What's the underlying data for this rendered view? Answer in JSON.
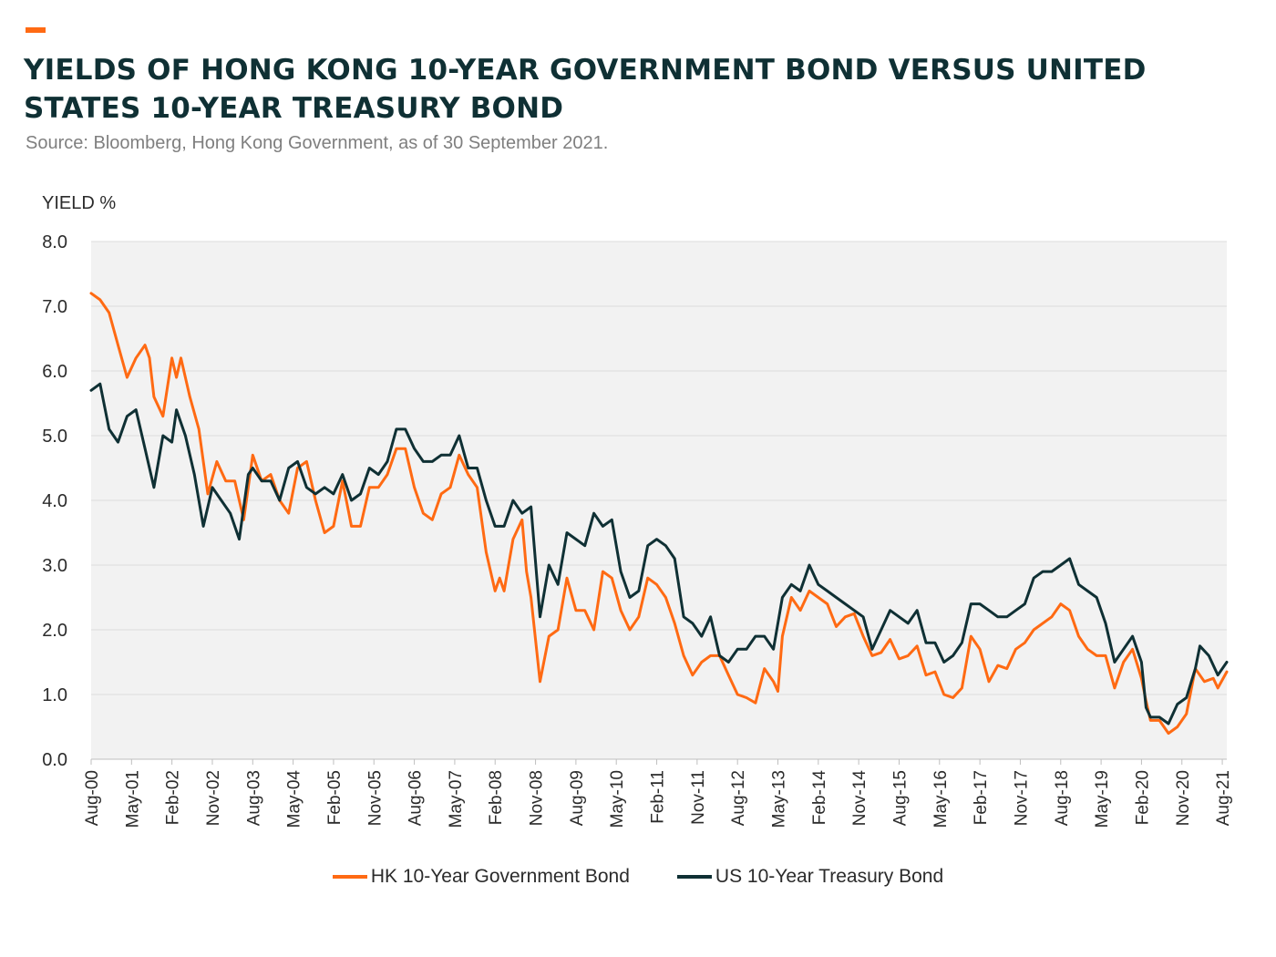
{
  "title": "YIELDS OF HONG KONG 10-YEAR GOVERNMENT BOND VERSUS UNITED STATES 10-YEAR TREASURY BOND",
  "subtitle": "Source: Bloomberg, Hong Kong Government, as of 30 September 2021.",
  "colors": {
    "accent": "#ff6a13",
    "hk": "#ff6a13",
    "us": "#0f3034",
    "title": "#0f3034",
    "plot_bg": "#f2f2f2"
  },
  "chart_data": {
    "type": "line",
    "title": "YIELDS OF HONG KONG 10-YEAR GOVERNMENT BOND VERSUS UNITED STATES 10-YEAR TREASURY BOND",
    "ylabel": "YIELD %",
    "xlabel": "",
    "ylim": [
      0,
      8
    ],
    "yticks": [
      "0.0",
      "1.0",
      "2.0",
      "3.0",
      "4.0",
      "5.0",
      "6.0",
      "7.0",
      "8.0"
    ],
    "xticks": [
      "Aug-00",
      "May-01",
      "Feb-02",
      "Nov-02",
      "Aug-03",
      "May-04",
      "Feb-05",
      "Nov-05",
      "Aug-06",
      "May-07",
      "Feb-08",
      "Nov-08",
      "Aug-09",
      "May-10",
      "Feb-11",
      "Nov-11",
      "Aug-12",
      "May-13",
      "Feb-14",
      "Nov-14",
      "Aug-15",
      "May-16",
      "Feb-17",
      "Nov-17",
      "Aug-18",
      "May-19",
      "Feb-20",
      "Nov-20",
      "Aug-21"
    ],
    "x_range": [
      "Aug-00",
      "Sep-21"
    ],
    "grid": "horizontal",
    "legend_position": "bottom",
    "series": [
      {
        "name": "HK 10-Year Government Bond",
        "color": "#ff6a13",
        "points": [
          [
            "2000-08",
            7.2
          ],
          [
            "2000-10",
            7.1
          ],
          [
            "2000-12",
            6.9
          ],
          [
            "2001-02",
            6.4
          ],
          [
            "2001-04",
            5.9
          ],
          [
            "2001-06",
            6.2
          ],
          [
            "2001-08",
            6.4
          ],
          [
            "2001-09",
            6.2
          ],
          [
            "2001-10",
            5.6
          ],
          [
            "2001-12",
            5.3
          ],
          [
            "2002-02",
            6.2
          ],
          [
            "2002-03",
            5.9
          ],
          [
            "2002-04",
            6.2
          ],
          [
            "2002-06",
            5.6
          ],
          [
            "2002-08",
            5.1
          ],
          [
            "2002-10",
            4.1
          ],
          [
            "2002-12",
            4.6
          ],
          [
            "2003-02",
            4.3
          ],
          [
            "2003-04",
            4.3
          ],
          [
            "2003-06",
            3.7
          ],
          [
            "2003-08",
            4.7
          ],
          [
            "2003-10",
            4.3
          ],
          [
            "2003-12",
            4.4
          ],
          [
            "2004-02",
            4.0
          ],
          [
            "2004-04",
            3.8
          ],
          [
            "2004-06",
            4.5
          ],
          [
            "2004-08",
            4.6
          ],
          [
            "2004-10",
            4.0
          ],
          [
            "2004-12",
            3.5
          ],
          [
            "2005-02",
            3.6
          ],
          [
            "2005-04",
            4.3
          ],
          [
            "2005-06",
            3.6
          ],
          [
            "2005-08",
            3.6
          ],
          [
            "2005-10",
            4.2
          ],
          [
            "2005-12",
            4.2
          ],
          [
            "2006-02",
            4.4
          ],
          [
            "2006-04",
            4.8
          ],
          [
            "2006-06",
            4.8
          ],
          [
            "2006-08",
            4.2
          ],
          [
            "2006-10",
            3.8
          ],
          [
            "2006-12",
            3.7
          ],
          [
            "2007-02",
            4.1
          ],
          [
            "2007-04",
            4.2
          ],
          [
            "2007-06",
            4.7
          ],
          [
            "2007-08",
            4.4
          ],
          [
            "2007-10",
            4.2
          ],
          [
            "2007-12",
            3.2
          ],
          [
            "2008-02",
            2.6
          ],
          [
            "2008-03",
            2.8
          ],
          [
            "2008-04",
            2.6
          ],
          [
            "2008-06",
            3.4
          ],
          [
            "2008-08",
            3.7
          ],
          [
            "2008-09",
            2.9
          ],
          [
            "2008-10",
            2.5
          ],
          [
            "2008-12",
            1.2
          ],
          [
            "2009-02",
            1.9
          ],
          [
            "2009-04",
            2.0
          ],
          [
            "2009-06",
            2.8
          ],
          [
            "2009-08",
            2.3
          ],
          [
            "2009-10",
            2.3
          ],
          [
            "2009-12",
            2.0
          ],
          [
            "2010-02",
            2.9
          ],
          [
            "2010-04",
            2.8
          ],
          [
            "2010-06",
            2.3
          ],
          [
            "2010-08",
            2.0
          ],
          [
            "2010-10",
            2.2
          ],
          [
            "2010-12",
            2.8
          ],
          [
            "2011-02",
            2.7
          ],
          [
            "2011-04",
            2.5
          ],
          [
            "2011-06",
            2.1
          ],
          [
            "2011-08",
            1.6
          ],
          [
            "2011-10",
            1.3
          ],
          [
            "2011-12",
            1.5
          ],
          [
            "2012-02",
            1.6
          ],
          [
            "2012-04",
            1.6
          ],
          [
            "2012-06",
            1.3
          ],
          [
            "2012-08",
            1.0
          ],
          [
            "2012-10",
            0.95
          ],
          [
            "2012-12",
            0.87
          ],
          [
            "2013-02",
            1.4
          ],
          [
            "2013-04",
            1.2
          ],
          [
            "2013-05",
            1.05
          ],
          [
            "2013-06",
            1.9
          ],
          [
            "2013-08",
            2.5
          ],
          [
            "2013-10",
            2.3
          ],
          [
            "2013-12",
            2.6
          ],
          [
            "2014-02",
            2.5
          ],
          [
            "2014-04",
            2.4
          ],
          [
            "2014-06",
            2.05
          ],
          [
            "2014-08",
            2.2
          ],
          [
            "2014-10",
            2.25
          ],
          [
            "2014-12",
            1.9
          ],
          [
            "2015-02",
            1.6
          ],
          [
            "2015-04",
            1.65
          ],
          [
            "2015-06",
            1.85
          ],
          [
            "2015-08",
            1.55
          ],
          [
            "2015-10",
            1.6
          ],
          [
            "2015-12",
            1.75
          ],
          [
            "2016-02",
            1.3
          ],
          [
            "2016-04",
            1.35
          ],
          [
            "2016-06",
            1.0
          ],
          [
            "2016-08",
            0.95
          ],
          [
            "2016-10",
            1.1
          ],
          [
            "2016-12",
            1.9
          ],
          [
            "2017-02",
            1.7
          ],
          [
            "2017-04",
            1.2
          ],
          [
            "2017-06",
            1.45
          ],
          [
            "2017-08",
            1.4
          ],
          [
            "2017-10",
            1.7
          ],
          [
            "2017-12",
            1.8
          ],
          [
            "2018-02",
            2.0
          ],
          [
            "2018-04",
            2.1
          ],
          [
            "2018-06",
            2.2
          ],
          [
            "2018-08",
            2.4
          ],
          [
            "2018-10",
            2.3
          ],
          [
            "2018-12",
            1.9
          ],
          [
            "2019-02",
            1.7
          ],
          [
            "2019-04",
            1.6
          ],
          [
            "2019-06",
            1.6
          ],
          [
            "2019-08",
            1.1
          ],
          [
            "2019-10",
            1.5
          ],
          [
            "2019-12",
            1.7
          ],
          [
            "2020-02",
            1.25
          ],
          [
            "2020-03",
            0.9
          ],
          [
            "2020-04",
            0.6
          ],
          [
            "2020-06",
            0.6
          ],
          [
            "2020-08",
            0.4
          ],
          [
            "2020-10",
            0.5
          ],
          [
            "2020-12",
            0.7
          ],
          [
            "2021-02",
            1.4
          ],
          [
            "2021-04",
            1.2
          ],
          [
            "2021-06",
            1.25
          ],
          [
            "2021-07",
            1.1
          ],
          [
            "2021-09",
            1.35
          ]
        ]
      },
      {
        "name": "US 10-Year Treasury Bond",
        "color": "#0f3034",
        "points": [
          [
            "2000-08",
            5.7
          ],
          [
            "2000-10",
            5.8
          ],
          [
            "2000-12",
            5.1
          ],
          [
            "2001-02",
            4.9
          ],
          [
            "2001-04",
            5.3
          ],
          [
            "2001-06",
            5.4
          ],
          [
            "2001-08",
            4.8
          ],
          [
            "2001-10",
            4.2
          ],
          [
            "2001-12",
            5.0
          ],
          [
            "2002-02",
            4.9
          ],
          [
            "2002-03",
            5.4
          ],
          [
            "2002-05",
            5.0
          ],
          [
            "2002-07",
            4.4
          ],
          [
            "2002-09",
            3.6
          ],
          [
            "2002-11",
            4.2
          ],
          [
            "2003-01",
            4.0
          ],
          [
            "2003-03",
            3.8
          ],
          [
            "2003-05",
            3.4
          ],
          [
            "2003-07",
            4.4
          ],
          [
            "2003-08",
            4.5
          ],
          [
            "2003-10",
            4.3
          ],
          [
            "2003-12",
            4.3
          ],
          [
            "2004-02",
            4.0
          ],
          [
            "2004-04",
            4.5
          ],
          [
            "2004-06",
            4.6
          ],
          [
            "2004-08",
            4.2
          ],
          [
            "2004-10",
            4.1
          ],
          [
            "2004-12",
            4.2
          ],
          [
            "2005-02",
            4.1
          ],
          [
            "2005-04",
            4.4
          ],
          [
            "2005-06",
            4.0
          ],
          [
            "2005-08",
            4.1
          ],
          [
            "2005-10",
            4.5
          ],
          [
            "2005-12",
            4.4
          ],
          [
            "2006-02",
            4.6
          ],
          [
            "2006-04",
            5.1
          ],
          [
            "2006-06",
            5.1
          ],
          [
            "2006-08",
            4.8
          ],
          [
            "2006-10",
            4.6
          ],
          [
            "2006-12",
            4.6
          ],
          [
            "2007-02",
            4.7
          ],
          [
            "2007-04",
            4.7
          ],
          [
            "2007-06",
            5.0
          ],
          [
            "2007-08",
            4.5
          ],
          [
            "2007-10",
            4.5
          ],
          [
            "2007-12",
            4.0
          ],
          [
            "2008-02",
            3.6
          ],
          [
            "2008-04",
            3.6
          ],
          [
            "2008-06",
            4.0
          ],
          [
            "2008-08",
            3.8
          ],
          [
            "2008-10",
            3.9
          ],
          [
            "2008-12",
            2.2
          ],
          [
            "2009-02",
            3.0
          ],
          [
            "2009-04",
            2.7
          ],
          [
            "2009-06",
            3.5
          ],
          [
            "2009-08",
            3.4
          ],
          [
            "2009-10",
            3.3
          ],
          [
            "2009-12",
            3.8
          ],
          [
            "2010-02",
            3.6
          ],
          [
            "2010-04",
            3.7
          ],
          [
            "2010-06",
            2.9
          ],
          [
            "2010-08",
            2.5
          ],
          [
            "2010-10",
            2.6
          ],
          [
            "2010-12",
            3.3
          ],
          [
            "2011-02",
            3.4
          ],
          [
            "2011-04",
            3.3
          ],
          [
            "2011-06",
            3.1
          ],
          [
            "2011-08",
            2.2
          ],
          [
            "2011-10",
            2.1
          ],
          [
            "2011-12",
            1.9
          ],
          [
            "2012-02",
            2.2
          ],
          [
            "2012-04",
            1.6
          ],
          [
            "2012-06",
            1.5
          ],
          [
            "2012-08",
            1.7
          ],
          [
            "2012-10",
            1.7
          ],
          [
            "2012-12",
            1.9
          ],
          [
            "2013-02",
            1.9
          ],
          [
            "2013-04",
            1.7
          ],
          [
            "2013-06",
            2.5
          ],
          [
            "2013-08",
            2.7
          ],
          [
            "2013-10",
            2.6
          ],
          [
            "2013-12",
            3.0
          ],
          [
            "2014-02",
            2.7
          ],
          [
            "2014-04",
            2.6
          ],
          [
            "2014-06",
            2.5
          ],
          [
            "2014-08",
            2.4
          ],
          [
            "2014-10",
            2.3
          ],
          [
            "2014-12",
            2.2
          ],
          [
            "2015-02",
            1.7
          ],
          [
            "2015-04",
            2.0
          ],
          [
            "2015-06",
            2.3
          ],
          [
            "2015-08",
            2.2
          ],
          [
            "2015-10",
            2.1
          ],
          [
            "2015-12",
            2.3
          ],
          [
            "2016-02",
            1.8
          ],
          [
            "2016-04",
            1.8
          ],
          [
            "2016-06",
            1.5
          ],
          [
            "2016-08",
            1.6
          ],
          [
            "2016-10",
            1.8
          ],
          [
            "2016-12",
            2.4
          ],
          [
            "2017-02",
            2.4
          ],
          [
            "2017-04",
            2.3
          ],
          [
            "2017-06",
            2.2
          ],
          [
            "2017-08",
            2.2
          ],
          [
            "2017-10",
            2.3
          ],
          [
            "2017-12",
            2.4
          ],
          [
            "2018-02",
            2.8
          ],
          [
            "2018-04",
            2.9
          ],
          [
            "2018-06",
            2.9
          ],
          [
            "2018-08",
            3.0
          ],
          [
            "2018-10",
            3.1
          ],
          [
            "2018-12",
            2.7
          ],
          [
            "2019-02",
            2.6
          ],
          [
            "2019-04",
            2.5
          ],
          [
            "2019-06",
            2.1
          ],
          [
            "2019-08",
            1.5
          ],
          [
            "2019-10",
            1.7
          ],
          [
            "2019-12",
            1.9
          ],
          [
            "2020-02",
            1.5
          ],
          [
            "2020-03",
            0.8
          ],
          [
            "2020-04",
            0.65
          ],
          [
            "2020-06",
            0.65
          ],
          [
            "2020-08",
            0.55
          ],
          [
            "2020-10",
            0.85
          ],
          [
            "2020-12",
            0.95
          ],
          [
            "2021-02",
            1.4
          ],
          [
            "2021-03",
            1.75
          ],
          [
            "2021-05",
            1.6
          ],
          [
            "2021-07",
            1.3
          ],
          [
            "2021-09",
            1.5
          ]
        ]
      }
    ]
  },
  "legend": {
    "hk_label": "HK 10-Year Government Bond",
    "us_label": "US 10-Year Treasury Bond"
  }
}
